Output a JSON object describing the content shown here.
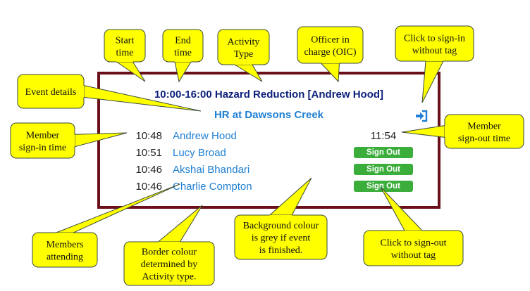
{
  "event": {
    "heading": "10:00-16:00 Hazard Reduction [Andrew Hood]",
    "details": "HR at Dawsons Creek",
    "border_color": "#6b0f1a",
    "signin_icon": "sign-in-arrow-icon",
    "members": [
      {
        "signin": "10:48",
        "name": "Andrew Hood",
        "signout": "11:54"
      },
      {
        "signin": "10:51",
        "name": "Lucy Broad",
        "signout_button": "Sign Out"
      },
      {
        "signin": "10:46",
        "name": "Akshai Bhandari",
        "signout_button": "Sign Out"
      },
      {
        "signin": "10:46",
        "name": "Charlie Compton",
        "signout_button": "Sign Out"
      }
    ]
  },
  "callouts": {
    "start_time": [
      "Start",
      "time"
    ],
    "end_time": [
      "End",
      "time"
    ],
    "activity_type": [
      "Activity",
      "Type"
    ],
    "officer": [
      "Officer in",
      "charge (OIC)"
    ],
    "signin_no_tag": [
      "Click to sign-in",
      "without tag"
    ],
    "event_details": [
      "Event details"
    ],
    "member_signin_time": [
      "Member",
      "sign-in time"
    ],
    "member_signout_time": [
      "Member",
      "sign-out time"
    ],
    "members_attending": [
      "Members",
      "attending"
    ],
    "border_colour": [
      "Border colour",
      "determined by",
      "Activity type."
    ],
    "background_colour": [
      "Background colour",
      "is grey if event",
      "is finished."
    ],
    "signout_no_tag": [
      "Click to sign-out",
      "without tag"
    ]
  },
  "colors": {
    "callout_fill": "#ffff00",
    "callout_stroke": "#3a4a3a",
    "heading": "#0b1f7a",
    "name_link": "#1f7fd4",
    "button": "#3aad3a"
  }
}
